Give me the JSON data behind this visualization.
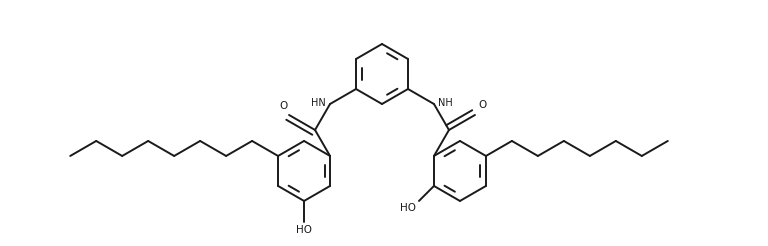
{
  "bg": "#ffffff",
  "lc": "#1a1a1a",
  "lw": 1.4,
  "dbo": 0.055,
  "figsize": [
    7.68,
    2.46
  ],
  "dpi": 100,
  "xlim": [
    0,
    7.68
  ],
  "ylim": [
    0,
    2.46
  ]
}
